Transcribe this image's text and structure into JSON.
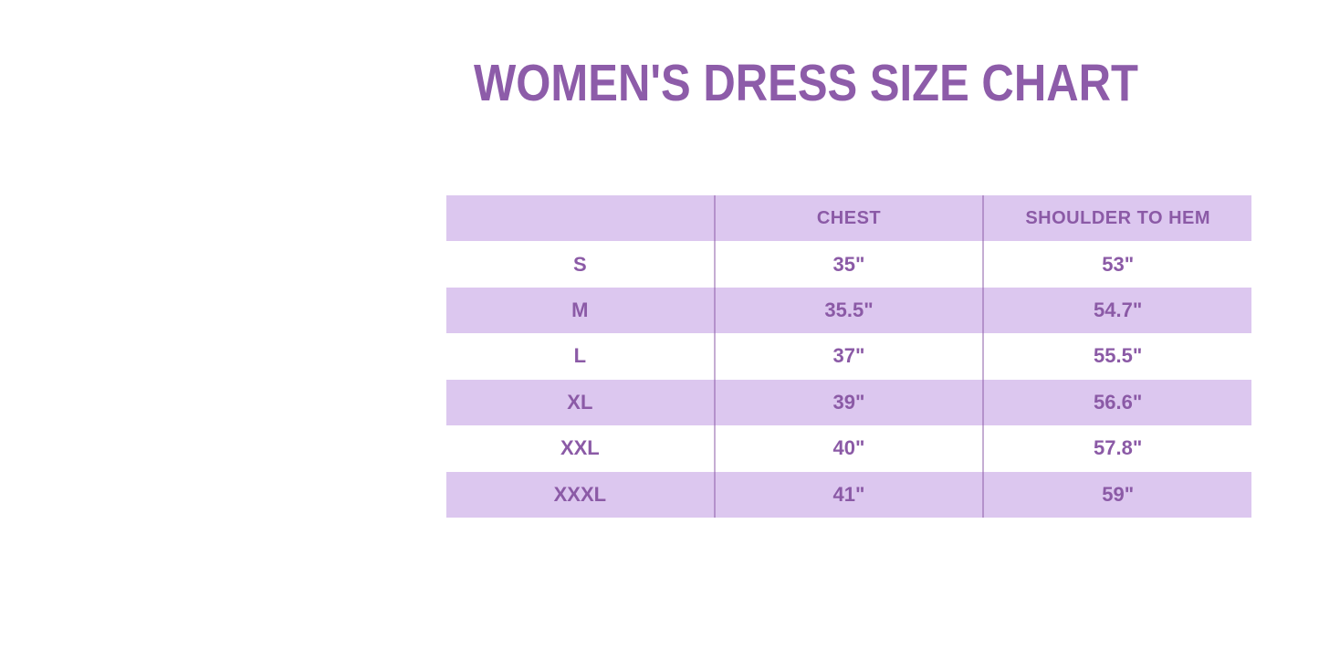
{
  "title": "WOMEN'S DRESS SIZE CHART",
  "colors": {
    "title_text": "#8d5ca9",
    "table_text": "#8b5aa6",
    "row_lavender": "#dcc7ef",
    "row_white": "#ffffff",
    "background": "#ffffff"
  },
  "chart_data": {
    "type": "table",
    "title": "WOMEN'S DRESS SIZE CHART",
    "columns": [
      "",
      "CHEST",
      "SHOULDER TO HEM"
    ],
    "row_labels": [
      "S",
      "M",
      "L",
      "XL",
      "XXL",
      "XXXL"
    ],
    "rows": [
      [
        "S",
        "35\"",
        "53\""
      ],
      [
        "M",
        "35.5\"",
        "54.7\""
      ],
      [
        "L",
        "37\"",
        "55.5\""
      ],
      [
        "XL",
        "39\"",
        "56.6\""
      ],
      [
        "XXL",
        "40\"",
        "57.8\""
      ],
      [
        "XXXL",
        "41\"",
        "59\""
      ]
    ],
    "layout": {
      "striped": true,
      "stripe_pattern": "header and even data rows lavender, odd data rows white",
      "column_dividers": true,
      "horizontal_borders": false,
      "text_align": "center"
    }
  }
}
